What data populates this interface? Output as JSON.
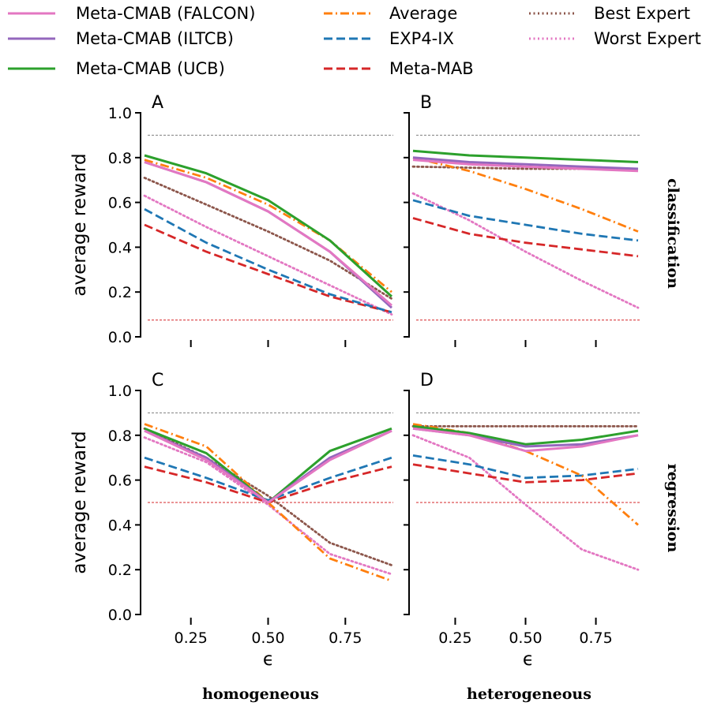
{
  "legend": [
    {
      "name": "Meta-CMAB (FALCON)",
      "color": "#e377c2",
      "dash": "solid"
    },
    {
      "name": "Meta-CMAB (ILTCB)",
      "color": "#9467bd",
      "dash": "solid"
    },
    {
      "name": "Meta-CMAB (UCB)",
      "color": "#2ca02c",
      "dash": "solid"
    },
    {
      "name": "Average",
      "color": "#ff7f0e",
      "dash": "dashdot"
    },
    {
      "name": "EXP4-IX",
      "color": "#1f77b4",
      "dash": "dashed"
    },
    {
      "name": "Meta-MAB",
      "color": "#d62728",
      "dash": "dashed"
    },
    {
      "name": "Best Expert",
      "color": "#8c564b",
      "dash": "dotted"
    },
    {
      "name": "Worst Expert",
      "color": "#e377c2",
      "dash": "dotted"
    }
  ],
  "row_labels": [
    "classification",
    "regression"
  ],
  "col_labels": [
    "homogeneous",
    "heterogeneous"
  ],
  "ylabel": "average reward",
  "xlabel": "ϵ",
  "xticks": [
    "0.25",
    "0.50",
    "0.75"
  ],
  "yticks": [
    "0.0",
    "0.2",
    "0.4",
    "0.6",
    "0.8",
    "1.0"
  ],
  "chart_data": [
    {
      "type": "line",
      "panel": "A",
      "row": "classification",
      "col": "homogeneous",
      "x": [
        0.1,
        0.3,
        0.5,
        0.7,
        0.9
      ],
      "xlim": [
        0.05,
        0.95
      ],
      "ylim": [
        0,
        1
      ],
      "reference_lines": [
        {
          "y": 0.9,
          "color": "#7f7f7f"
        },
        {
          "y": 0.075,
          "color": "#d62728"
        }
      ],
      "series": [
        {
          "name": "Meta-CMAB (FALCON)",
          "values": [
            0.78,
            0.69,
            0.56,
            0.38,
            0.14
          ]
        },
        {
          "name": "Meta-CMAB (ILTCB)",
          "values": [
            0.78,
            0.69,
            0.56,
            0.38,
            0.13
          ]
        },
        {
          "name": "Meta-CMAB (UCB)",
          "values": [
            0.81,
            0.73,
            0.61,
            0.43,
            0.18
          ]
        },
        {
          "name": "Average",
          "values": [
            0.79,
            0.71,
            0.59,
            0.43,
            0.2
          ]
        },
        {
          "name": "EXP4-IX",
          "values": [
            0.57,
            0.42,
            0.3,
            0.19,
            0.11
          ]
        },
        {
          "name": "Meta-MAB",
          "values": [
            0.5,
            0.38,
            0.28,
            0.18,
            0.11
          ]
        },
        {
          "name": "Best Expert",
          "values": [
            0.71,
            0.59,
            0.47,
            0.34,
            0.17
          ]
        },
        {
          "name": "Worst Expert",
          "values": [
            0.63,
            0.49,
            0.36,
            0.23,
            0.1
          ]
        }
      ]
    },
    {
      "type": "line",
      "panel": "B",
      "row": "classification",
      "col": "heterogeneous",
      "x": [
        0.1,
        0.3,
        0.5,
        0.7,
        0.9
      ],
      "xlim": [
        0.05,
        0.95
      ],
      "ylim": [
        0,
        1
      ],
      "reference_lines": [
        {
          "y": 0.9,
          "color": "#7f7f7f"
        },
        {
          "y": 0.075,
          "color": "#d62728"
        }
      ],
      "series": [
        {
          "name": "Meta-CMAB (FALCON)",
          "values": [
            0.79,
            0.77,
            0.76,
            0.75,
            0.74
          ]
        },
        {
          "name": "Meta-CMAB (ILTCB)",
          "values": [
            0.8,
            0.78,
            0.77,
            0.76,
            0.75
          ]
        },
        {
          "name": "Meta-CMAB (UCB)",
          "values": [
            0.83,
            0.81,
            0.8,
            0.79,
            0.78
          ]
        },
        {
          "name": "Average",
          "values": [
            0.8,
            0.74,
            0.66,
            0.57,
            0.47
          ]
        },
        {
          "name": "EXP4-IX",
          "values": [
            0.61,
            0.54,
            0.5,
            0.46,
            0.43
          ]
        },
        {
          "name": "Meta-MAB",
          "values": [
            0.53,
            0.46,
            0.42,
            0.39,
            0.36
          ]
        },
        {
          "name": "Best Expert",
          "values": [
            0.76,
            0.755,
            0.75,
            0.75,
            0.745
          ]
        },
        {
          "name": "Worst Expert",
          "values": [
            0.64,
            0.52,
            0.38,
            0.25,
            0.13
          ]
        }
      ]
    },
    {
      "type": "line",
      "panel": "C",
      "row": "regression",
      "col": "homogeneous",
      "x": [
        0.1,
        0.3,
        0.5,
        0.7,
        0.9
      ],
      "xlim": [
        0.05,
        0.95
      ],
      "ylim": [
        0,
        1
      ],
      "reference_lines": [
        {
          "y": 0.9,
          "color": "#7f7f7f"
        },
        {
          "y": 0.5,
          "color": "#d62728"
        }
      ],
      "series": [
        {
          "name": "Meta-CMAB (FALCON)",
          "values": [
            0.82,
            0.69,
            0.5,
            0.69,
            0.82
          ]
        },
        {
          "name": "Meta-CMAB (ILTCB)",
          "values": [
            0.82,
            0.7,
            0.5,
            0.7,
            0.82
          ]
        },
        {
          "name": "Meta-CMAB (UCB)",
          "values": [
            0.83,
            0.72,
            0.5,
            0.73,
            0.83
          ]
        },
        {
          "name": "Average",
          "values": [
            0.85,
            0.75,
            0.5,
            0.25,
            0.15
          ]
        },
        {
          "name": "EXP4-IX",
          "values": [
            0.7,
            0.61,
            0.51,
            0.61,
            0.7
          ]
        },
        {
          "name": "Meta-MAB",
          "values": [
            0.66,
            0.59,
            0.5,
            0.59,
            0.66
          ]
        },
        {
          "name": "Best Expert",
          "values": [
            0.83,
            0.7,
            0.53,
            0.32,
            0.22
          ]
        },
        {
          "name": "Worst Expert",
          "values": [
            0.79,
            0.68,
            0.49,
            0.27,
            0.18
          ]
        }
      ]
    },
    {
      "type": "line",
      "panel": "D",
      "row": "regression",
      "col": "heterogeneous",
      "x": [
        0.1,
        0.3,
        0.5,
        0.7,
        0.9
      ],
      "xlim": [
        0.05,
        0.95
      ],
      "ylim": [
        0,
        1
      ],
      "reference_lines": [
        {
          "y": 0.9,
          "color": "#7f7f7f"
        },
        {
          "y": 0.5,
          "color": "#d62728"
        }
      ],
      "series": [
        {
          "name": "Meta-CMAB (FALCON)",
          "values": [
            0.83,
            0.8,
            0.73,
            0.75,
            0.8
          ]
        },
        {
          "name": "Meta-CMAB (ILTCB)",
          "values": [
            0.83,
            0.8,
            0.75,
            0.76,
            0.8
          ]
        },
        {
          "name": "Meta-CMAB (UCB)",
          "values": [
            0.84,
            0.81,
            0.76,
            0.78,
            0.82
          ]
        },
        {
          "name": "Average",
          "values": [
            0.85,
            0.81,
            0.73,
            0.62,
            0.4
          ]
        },
        {
          "name": "EXP4-IX",
          "values": [
            0.71,
            0.67,
            0.61,
            0.62,
            0.65
          ]
        },
        {
          "name": "Meta-MAB",
          "values": [
            0.67,
            0.63,
            0.59,
            0.6,
            0.63
          ]
        },
        {
          "name": "Best Expert",
          "values": [
            0.84,
            0.84,
            0.84,
            0.84,
            0.84
          ]
        },
        {
          "name": "Worst Expert",
          "values": [
            0.8,
            0.7,
            0.49,
            0.29,
            0.2
          ]
        }
      ]
    }
  ]
}
